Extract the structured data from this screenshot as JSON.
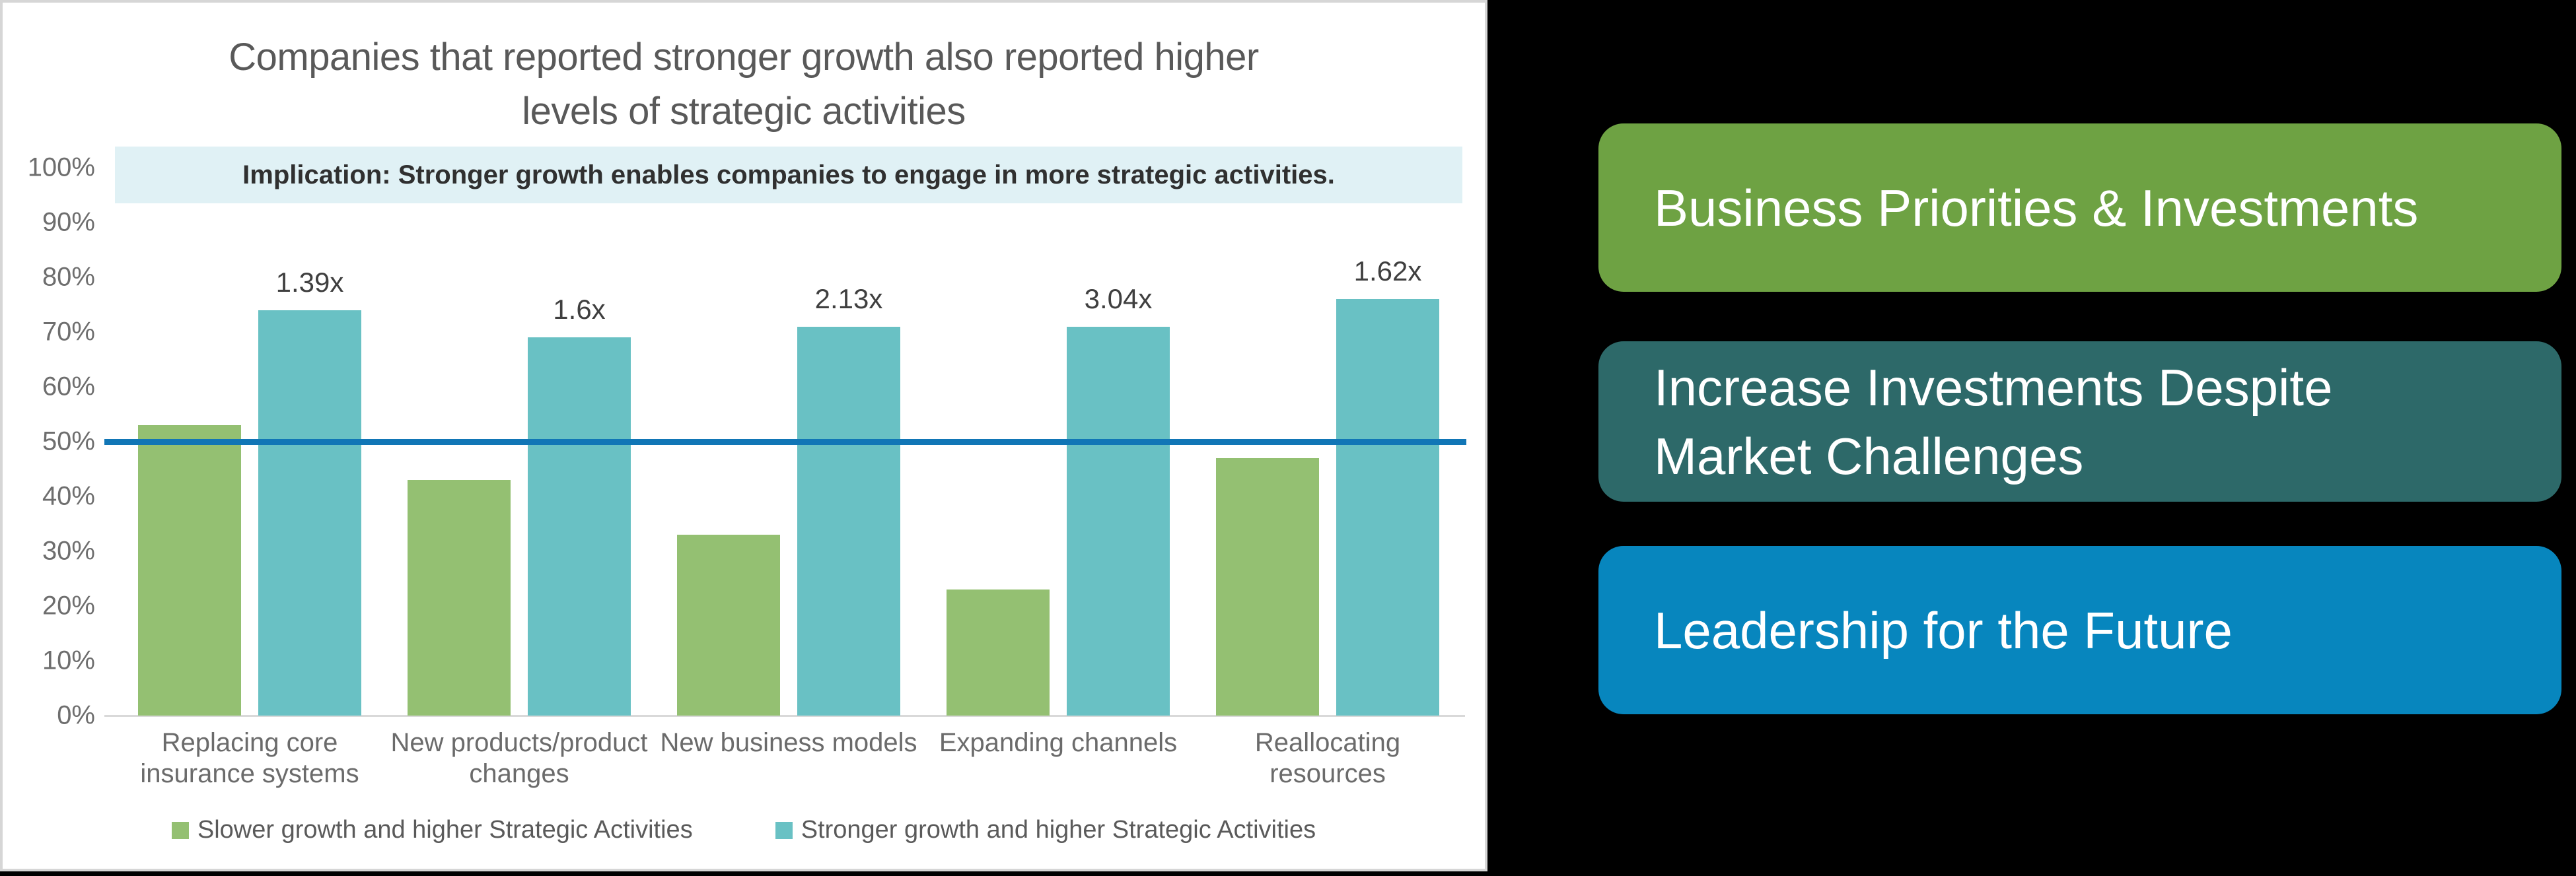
{
  "panel": {
    "title_lines": [
      "Companies that reported stronger growth also reported higher",
      "levels of strategic activities"
    ],
    "implication": "Implication: Stronger growth enables companies to engage in more strategic activities."
  },
  "chart_data": {
    "type": "bar",
    "title": "Companies that reported stronger growth also reported higher levels of strategic activities",
    "annotation": "Implication: Stronger growth enables companies to engage in more strategic activities.",
    "xlabel": "",
    "ylabel": "",
    "ylim": [
      0,
      100
    ],
    "grid": false,
    "legend_position": "bottom",
    "categories": [
      "Replacing core\ninsurance systems",
      "New products/product\nchanges",
      "New business models",
      "Expanding channels",
      "Reallocating\nresources"
    ],
    "series": [
      {
        "name": "Slower growth and higher Strategic Activities",
        "color": "#94c072",
        "values": [
          53,
          43,
          33,
          23,
          47
        ]
      },
      {
        "name": "Stronger growth and higher Strategic Activities",
        "color": "#69c1c4",
        "values": [
          74,
          69,
          71,
          71,
          76
        ]
      }
    ],
    "bar_labels": [
      "1.39x",
      "1.6x",
      "2.13x",
      "3.04x",
      "1.62x"
    ],
    "reference_line": {
      "value": 50,
      "color": "#1176b6"
    },
    "y_axis": {
      "min": 0,
      "max": 100,
      "step": 10,
      "suffix": "%"
    }
  },
  "sidebar": {
    "buttons": [
      {
        "lines": [
          "Business Priorities & Investments"
        ],
        "color": "#6ea243"
      },
      {
        "lines": [
          "Increase Investments Despite",
          "Market Challenges"
        ],
        "color": "#2d6969"
      },
      {
        "lines": [
          "Leadership for the Future"
        ],
        "color": "#0786be"
      }
    ]
  }
}
